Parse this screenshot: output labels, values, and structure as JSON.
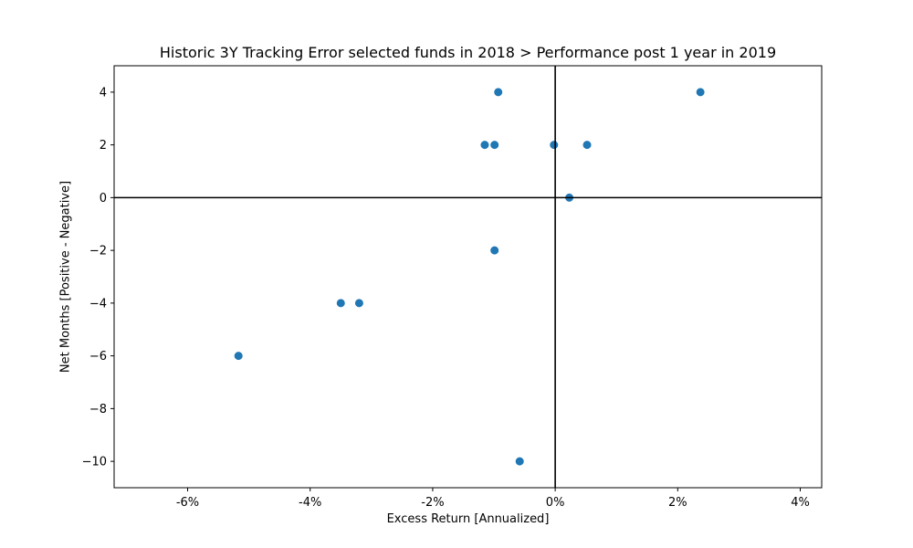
{
  "chart_data": {
    "type": "scatter",
    "title": "Historic 3Y Tracking Error selected funds in 2018 > Performance post 1 year in 2019",
    "xlabel": "Excess Return [Annualized]",
    "ylabel": "Net Months [Positive - Negative]",
    "xlim": [
      -7.2,
      4.35
    ],
    "ylim": [
      -11,
      5
    ],
    "x_ticks": [
      -6,
      -4,
      -2,
      0,
      2,
      4
    ],
    "x_tick_labels": [
      "-6%",
      "-4%",
      "-2%",
      "0%",
      "2%",
      "4%"
    ],
    "y_ticks": [
      -10,
      -8,
      -6,
      -4,
      -2,
      0,
      2,
      4
    ],
    "y_tick_labels": [
      "−10",
      "−8",
      "−6",
      "−4",
      "−2",
      "0",
      "2",
      "4"
    ],
    "reference_lines": {
      "x": 0,
      "y": 0
    },
    "grid": false,
    "marker_color": "#1f77b4",
    "points": [
      {
        "x": -0.93,
        "y": 4
      },
      {
        "x": 2.37,
        "y": 4
      },
      {
        "x": -1.15,
        "y": 2
      },
      {
        "x": -0.99,
        "y": 2
      },
      {
        "x": -0.02,
        "y": 2
      },
      {
        "x": 0.52,
        "y": 2
      },
      {
        "x": 0.23,
        "y": 0
      },
      {
        "x": -0.99,
        "y": -2
      },
      {
        "x": -3.5,
        "y": -4
      },
      {
        "x": -3.2,
        "y": -4
      },
      {
        "x": -5.17,
        "y": -6
      },
      {
        "x": -0.58,
        "y": -10
      }
    ]
  }
}
